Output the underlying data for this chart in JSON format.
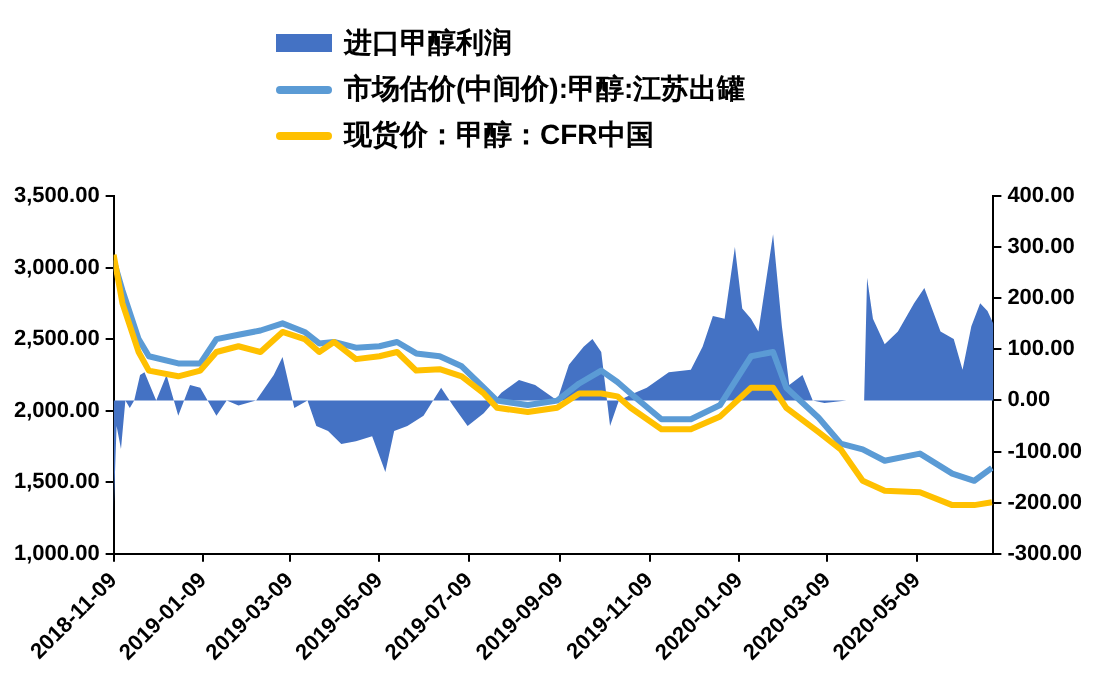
{
  "chart_data": {
    "type": "line",
    "legend": "top",
    "marker": "none",
    "line_style": "solid",
    "x": [
      "2018-11-09",
      "2018-11-15",
      "2018-11-26",
      "2018-12-03",
      "2018-12-23",
      "2019-01-07",
      "2019-01-18",
      "2019-02-02",
      "2019-02-17",
      "2019-03-04",
      "2019-03-19",
      "2019-03-29",
      "2019-04-08",
      "2019-04-23",
      "2019-05-09",
      "2019-05-21",
      "2019-06-03",
      "2019-06-19",
      "2019-07-04",
      "2019-07-19",
      "2019-07-28",
      "2019-08-18",
      "2019-09-07",
      "2019-09-22",
      "2019-10-07",
      "2019-10-18",
      "2019-10-27",
      "2019-11-17",
      "2019-12-07",
      "2019-12-27",
      "2020-01-17",
      "2020-02-01",
      "2020-02-10",
      "2020-03-03",
      "2020-03-18",
      "2020-04-02",
      "2020-04-17",
      "2020-05-11",
      "2020-06-02",
      "2020-06-17",
      "2020-06-29"
    ],
    "series": [
      {
        "name": "进口甲醇利润",
        "type": "area",
        "axis": "y2",
        "color": "#4472c4",
        "x": [
          "2018-11-09",
          "2018-11-11",
          "2018-11-14",
          "2018-11-17",
          "2018-11-20",
          "2018-11-23",
          "2018-11-27",
          "2018-11-30",
          "2018-12-08",
          "2018-12-15",
          "2018-12-23",
          "2018-12-31",
          "2019-01-07",
          "2019-01-18",
          "2019-01-25",
          "2019-02-02",
          "2019-02-14",
          "2019-02-26",
          "2019-03-04",
          "2019-03-12",
          "2019-03-21",
          "2019-03-27",
          "2019-04-04",
          "2019-04-13",
          "2019-04-23",
          "2019-05-04",
          "2019-05-13",
          "2019-05-19",
          "2019-05-28",
          "2019-06-08",
          "2019-06-20",
          "2019-06-28",
          "2019-07-08",
          "2019-07-19",
          "2019-07-31",
          "2019-08-12",
          "2019-08-23",
          "2019-09-07",
          "2019-09-15",
          "2019-09-25",
          "2019-10-01",
          "2019-10-07",
          "2019-10-13",
          "2019-10-19",
          "2019-10-30",
          "2019-11-07",
          "2019-11-22",
          "2019-12-07",
          "2019-12-15",
          "2019-12-22",
          "2019-12-30",
          "2020-01-06",
          "2020-01-11",
          "2020-01-17",
          "2020-01-22",
          "2020-02-01",
          "2020-02-07",
          "2020-02-12",
          "2020-02-21",
          "2020-02-28",
          "2020-03-07",
          "2020-03-22",
          "2020-04-03",
          "2020-04-05",
          "2020-04-09",
          "2020-04-17",
          "2020-04-26",
          "2020-05-07",
          "2020-05-14",
          "2020-05-25",
          "2020-06-03",
          "2020-06-09",
          "2020-06-15",
          "2020-06-21",
          "2020-06-26",
          "2020-06-30"
        ],
        "values": [
          -220,
          -50,
          -95,
          0,
          -15,
          0,
          50,
          55,
          0,
          50,
          -30,
          30,
          25,
          -30,
          0,
          -10,
          0,
          50,
          85,
          -15,
          0,
          -50,
          -60,
          -85,
          -80,
          -70,
          -140,
          -60,
          -50,
          -30,
          25,
          -10,
          -50,
          -25,
          15,
          40,
          30,
          0,
          70,
          105,
          120,
          95,
          -50,
          0,
          15,
          25,
          55,
          60,
          105,
          165,
          160,
          300,
          180,
          160,
          135,
          325,
          145,
          30,
          50,
          0,
          -5,
          0,
          0,
          240,
          160,
          110,
          135,
          190,
          220,
          135,
          120,
          60,
          145,
          190,
          175,
          150
        ]
      },
      {
        "name": "市场估价(中间价):甲醇:江苏出罐",
        "color": "#5b9bd5",
        "values": [
          3050,
          2840,
          2500,
          2380,
          2330,
          2330,
          2500,
          2530,
          2560,
          2610,
          2550,
          2470,
          2480,
          2440,
          2450,
          2480,
          2400,
          2380,
          2310,
          2160,
          2070,
          2040,
          2070,
          2190,
          2280,
          2200,
          2120,
          1940,
          1940,
          2040,
          2380,
          2410,
          2160,
          1950,
          1770,
          1730,
          1650,
          1700,
          1560,
          1510,
          1600
        ]
      },
      {
        "name": "现货价：甲醇：CFR中国",
        "color": "#ffc000",
        "values": [
          3090,
          2750,
          2410,
          2280,
          2240,
          2280,
          2410,
          2450,
          2410,
          2550,
          2500,
          2410,
          2480,
          2360,
          2380,
          2410,
          2280,
          2290,
          2240,
          2120,
          2020,
          1990,
          2020,
          2120,
          2120,
          2100,
          2020,
          1870,
          1870,
          1960,
          2160,
          2160,
          2020,
          1850,
          1730,
          1510,
          1440,
          1430,
          1340,
          1340,
          1360
        ]
      }
    ],
    "xlim": [
      "2018-11-09",
      "2020-06-30"
    ],
    "xticks": [
      "2018-11-09",
      "2019-01-09",
      "2019-03-09",
      "2019-05-09",
      "2019-07-09",
      "2019-09-09",
      "2019-11-09",
      "2020-01-09",
      "2020-03-09",
      "2020-05-09"
    ],
    "ylim": [
      1000,
      3500
    ],
    "yticks": [
      {
        "value": 1000,
        "label": "1,000.00"
      },
      {
        "value": 1500,
        "label": "1,500.00"
      },
      {
        "value": 2000,
        "label": "2,000.00"
      },
      {
        "value": 2500,
        "label": "2,500.00"
      },
      {
        "value": 3000,
        "label": "3,000.00"
      },
      {
        "value": 3500,
        "label": "3,500.00"
      }
    ],
    "y2lim": [
      -300,
      400
    ],
    "y2ticks": [
      {
        "value": -300,
        "label": "-300.00"
      },
      {
        "value": -200,
        "label": "-200.00"
      },
      {
        "value": -100,
        "label": "-100.00"
      },
      {
        "value": 0,
        "label": "0.00"
      },
      {
        "value": 100,
        "label": "100.00"
      },
      {
        "value": 200,
        "label": "200.00"
      },
      {
        "value": 300,
        "label": "300.00"
      },
      {
        "value": 400,
        "label": "400.00"
      }
    ]
  }
}
